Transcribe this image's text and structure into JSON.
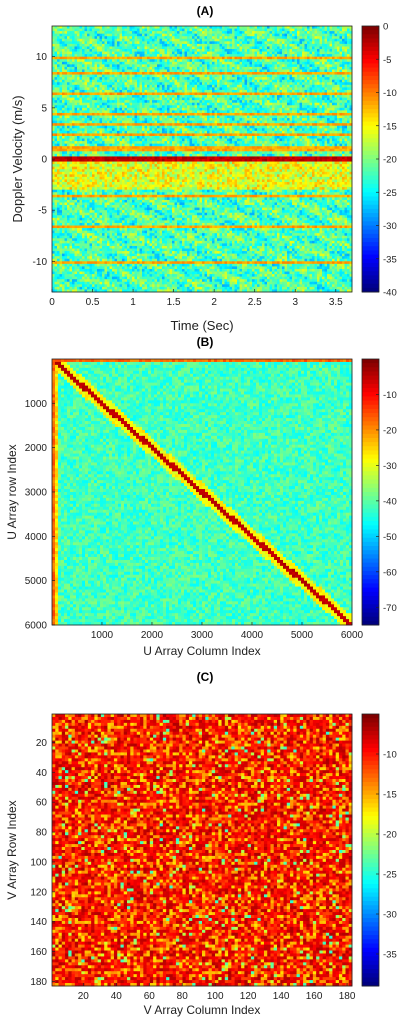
{
  "chart_data": [
    {
      "type": "heatmap",
      "title": "(A)",
      "xlabel": "Time (Sec)",
      "ylabel": "Doppler Velocity (m/s)",
      "xlim": [
        0,
        3.7
      ],
      "ylim": [
        -13,
        13
      ],
      "xticks": [
        "0",
        "0.5",
        "1",
        "1.5",
        "2",
        "2.5",
        "3",
        "3.5"
      ],
      "yticks": [
        "10",
        "5",
        "0",
        "-5",
        "-10"
      ],
      "clim": [
        -40,
        0
      ],
      "colorbar_ticks": [
        "0",
        "-5",
        "-10",
        "-15",
        "-20",
        "-25",
        "-30",
        "-35",
        "-40"
      ],
      "colormap": "jet",
      "features": "Strong horizontal band at 0 m/s (about 0 dB); thin bright lines near -10, -6.5, -3.5, 1.2, 2.5, 3.5, 4.5, 6.5, 8.5, 10 m/s; background mostly -20 to -25 dB"
    },
    {
      "type": "heatmap",
      "title": "(B)",
      "xlabel": "U Array Column Index",
      "ylabel": "U Array row Index",
      "xlim": [
        1,
        6000
      ],
      "ylim": [
        1,
        6000
      ],
      "xticks": [
        "1000",
        "2000",
        "3000",
        "4000",
        "5000",
        "6000"
      ],
      "yticks": [
        "1000",
        "2000",
        "3000",
        "4000",
        "5000",
        "6000"
      ],
      "clim": [
        -75,
        0
      ],
      "colorbar_ticks": [
        "-10",
        "-20",
        "-30",
        "-40",
        "-50",
        "-60",
        "-70"
      ],
      "colormap": "jet",
      "features": "Strong main diagonal near 0 dB; bright first row and first column; off-diagonal background around -40 to -45 dB"
    },
    {
      "type": "heatmap",
      "title": "(C)",
      "xlabel": "V Array Column Index",
      "ylabel": "V Array Row Index",
      "xlim": [
        1,
        183
      ],
      "ylim": [
        1,
        183
      ],
      "xticks": [
        "20",
        "40",
        "60",
        "80",
        "100",
        "120",
        "140",
        "160",
        "180"
      ],
      "yticks": [
        "20",
        "40",
        "60",
        "80",
        "100",
        "120",
        "140",
        "160",
        "180"
      ],
      "clim": [
        -39,
        -5
      ],
      "colorbar_ticks": [
        "-10",
        "-15",
        "-20",
        "-25",
        "-30",
        "-35"
      ],
      "colormap": "jet",
      "features": "Mostly red/orange speckle around -10 dB with scattered yellow and green cells"
    }
  ]
}
